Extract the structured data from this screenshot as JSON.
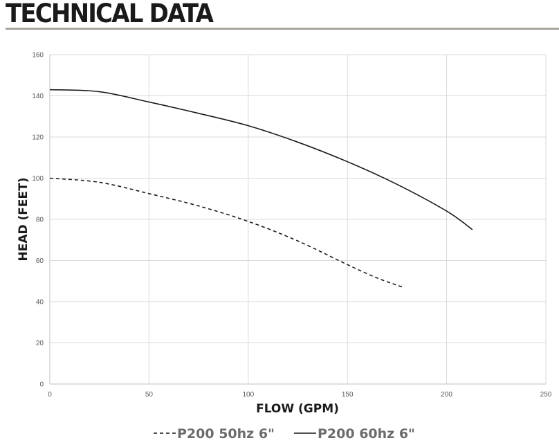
{
  "header": {
    "title": "TECHNICAL DATA"
  },
  "chart_data": {
    "type": "line",
    "xlabel": "FLOW (GPM)",
    "ylabel": "HEAD (FEET)",
    "xlim": [
      0,
      250
    ],
    "ylim": [
      0,
      160
    ],
    "xticks": [
      0,
      50,
      100,
      150,
      200,
      250
    ],
    "yticks": [
      0,
      20,
      40,
      60,
      80,
      100,
      120,
      140,
      160
    ],
    "grid": true,
    "legend_position": "bottom",
    "series": [
      {
        "name": "P200 50hz 6\"",
        "style": "dashed",
        "color": "#1a1a1a",
        "x": [
          0,
          25,
          50,
          75,
          100,
          125,
          150,
          165,
          178
        ],
        "y": [
          100,
          98,
          92.5,
          86.5,
          79,
          69.5,
          58,
          51.5,
          47
        ]
      },
      {
        "name": "P200 60hz 6\"",
        "style": "solid",
        "color": "#1a1a1a",
        "x": [
          0,
          25,
          50,
          75,
          100,
          125,
          150,
          175,
          200,
          213
        ],
        "y": [
          143,
          142,
          137,
          131.5,
          125.5,
          117.5,
          108,
          97,
          84,
          75
        ]
      }
    ]
  }
}
